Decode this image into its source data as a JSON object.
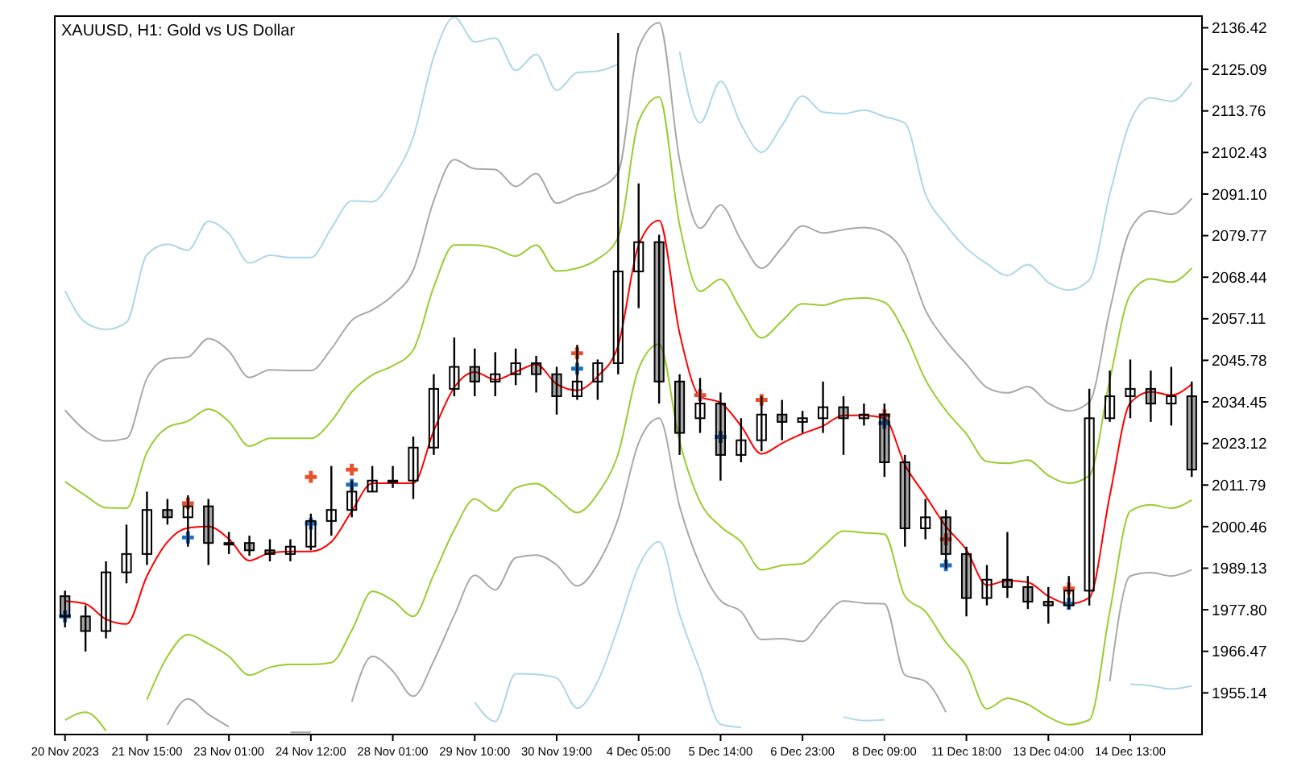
{
  "chart_data": {
    "type": "candlestick",
    "title": "XAUUSD, H1:  Gold vs US Dollar",
    "categories": [
      "20 Nov 2023",
      null,
      null,
      null,
      "21 Nov 15:00",
      null,
      null,
      null,
      "23 Nov 01:00",
      null,
      null,
      null,
      "24 Nov 12:00",
      null,
      null,
      null,
      "28 Nov 01:00",
      null,
      null,
      null,
      "29 Nov 10:00",
      null,
      null,
      null,
      "30 Nov 19:00",
      null,
      null,
      null,
      "4 Dec 05:00",
      null,
      null,
      null,
      "5 Dec 14:00",
      null,
      null,
      null,
      "6 Dec 23:00",
      null,
      null,
      null,
      "8 Dec 09:00",
      null,
      null,
      null,
      "11 Dec 18:00",
      null,
      null,
      null,
      "13 Dec 04:00",
      null,
      null,
      null,
      "14 Dec 13:00",
      null,
      null,
      null
    ],
    "ohlc": [
      [
        1981.5,
        1983,
        1973,
        1976
      ],
      [
        1976,
        1979,
        1966.4,
        1972
      ],
      [
        1972,
        1991,
        1970,
        1988
      ],
      [
        1988,
        2001,
        1985,
        1993
      ],
      [
        1993,
        2010,
        1990,
        2005
      ],
      [
        2005,
        2008,
        2001,
        2003
      ],
      [
        2003,
        2009,
        1995,
        2006
      ],
      [
        2006,
        2008,
        1990,
        1996
      ],
      [
        1996,
        1999,
        1993,
        1996
      ],
      [
        1996,
        1998,
        1992.5,
        1994
      ],
      [
        1994,
        1997,
        1991,
        1993
      ],
      [
        1993,
        1997,
        1991,
        1995
      ],
      [
        1995,
        2004,
        1994,
        2002
      ],
      [
        2002,
        2017,
        1998,
        2005
      ],
      [
        2005,
        2013,
        2003,
        2010
      ],
      [
        2010,
        2017,
        2010,
        2013
      ],
      [
        2013,
        2017,
        2011,
        2013
      ],
      [
        2013,
        2025,
        2008,
        2022
      ],
      [
        2022,
        2042,
        2020,
        2038
      ],
      [
        2038,
        2052,
        2036,
        2044
      ],
      [
        2044,
        2049,
        2036,
        2040
      ],
      [
        2040,
        2048,
        2036,
        2042
      ],
      [
        2042,
        2049,
        2039,
        2045
      ],
      [
        2045,
        2047,
        2037,
        2042
      ],
      [
        2042,
        2044,
        2031,
        2036
      ],
      [
        2036,
        2050,
        2035,
        2040
      ],
      [
        2040,
        2046,
        2035,
        2045
      ],
      [
        2045,
        2135,
        2042,
        2070
      ],
      [
        2070,
        2094,
        2060,
        2078
      ],
      [
        2078,
        2080,
        2034,
        2040
      ],
      [
        2040,
        2042,
        2020,
        2026
      ],
      [
        2030,
        2041,
        2026,
        2034
      ],
      [
        2034,
        2037,
        2013,
        2020
      ],
      [
        2020,
        2030,
        2018,
        2024
      ],
      [
        2024,
        2036,
        2021,
        2031
      ],
      [
        2031,
        2035,
        2024,
        2029
      ],
      [
        2029,
        2032,
        2026,
        2030
      ],
      [
        2030,
        2040,
        2026,
        2033
      ],
      [
        2033,
        2036,
        2020,
        2030
      ],
      [
        2030,
        2034,
        2028,
        2031
      ],
      [
        2031,
        2034,
        2014,
        2018
      ],
      [
        2018,
        2020,
        1995,
        2000
      ],
      [
        2000,
        2008,
        1997,
        2003
      ],
      [
        2003,
        2005,
        1989,
        1993
      ],
      [
        1993,
        1995,
        1976,
        1981
      ],
      [
        1981,
        1990,
        1979,
        1986
      ],
      [
        1986,
        1999,
        1981,
        1984
      ],
      [
        1984,
        1987,
        1978,
        1980
      ],
      [
        1980,
        1984,
        1974,
        1979
      ],
      [
        1979,
        1987,
        1978,
        1983
      ],
      [
        1983,
        2038,
        1979,
        2030
      ],
      [
        2030,
        2043,
        2029,
        2036
      ],
      [
        2036,
        2046,
        2030,
        2038
      ],
      [
        2038,
        2043,
        2029,
        2034
      ],
      [
        2034,
        2044,
        2028,
        2036
      ],
      [
        2036,
        2040,
        2014,
        2016
      ]
    ],
    "series": [
      {
        "type": "line",
        "color": "#add8e6",
        "values": [
          2064.7,
          2056.1,
          2054.2,
          2056.1,
          2074.6,
          2077.4,
          2075.8,
          2083.7,
          2080.3,
          2072.3,
          2074.4,
          2073.8,
          2073.8,
          2081.8,
          2089.2,
          2089.0,
          2095.5,
          2106.7,
          2128.5,
          2139.3,
          2132.6,
          2133.6,
          2124.8,
          2129.2,
          2119.4,
          2124.2,
          2124.6,
          2126.5,
          null,
          null,
          2129.9,
          2110.5,
          2121.8,
          2110.1,
          2102.5,
          2109.8,
          2117.8,
          2113.4,
          2113.0,
          2114.0,
          2112.2,
          2110.4,
          2091.1,
          2082.7,
          2076.3,
          2072.1,
          2068.9,
          2071.9,
          2067.0,
          2064.9,
          2067.7,
          2091.1,
          2110.9,
          2117.3,
          2116.4,
          2121.5
        ]
      },
      {
        "type": "line",
        "color": "#a9a9a9",
        "values": [
          2032.2,
          2026.6,
          2023.8,
          2024.5,
          2040.9,
          2046.2,
          2046.7,
          2051.7,
          2048.3,
          2041.1,
          2043.2,
          2043.0,
          2043.0,
          2048.9,
          2056.7,
          2059.5,
          2063.5,
          2070.4,
          2089.3,
          2100.5,
          2098.0,
          2097.8,
          2093.2,
          2096.7,
          2088.6,
          2090.9,
          2092.6,
          2097.0,
          2131.1,
          2137.8,
          2100.4,
          2081.8,
          2088.1,
          2078.5,
          2070.9,
          2076.5,
          2082.4,
          2080.5,
          2081.4,
          2082.0,
          2080.6,
          2074.6,
          2059.5,
          2051.1,
          2044.7,
          2038.4,
          2036.9,
          2038.6,
          2034.1,
          2032.0,
          2034.4,
          2059.5,
          2081.4,
          2086.5,
          2085.6,
          2089.9
        ]
      },
      {
        "type": "line",
        "color": "#9acd32",
        "values": [
          2012.7,
          2008.9,
          2005.6,
          2005.5,
          2020.7,
          2027.5,
          2029.2,
          2032.5,
          2029.1,
          2022.4,
          2024.5,
          2024.5,
          2024.5,
          2029.2,
          2037.2,
          2041.8,
          2044.3,
          2048.6,
          2065.8,
          2077.2,
          2077.2,
          2076.3,
          2074.2,
          2077.2,
          2070.1,
          2070.9,
          2073.4,
          2079.3,
          2110.9,
          2117.6,
          2082.7,
          2064.6,
          2067.9,
          2059.5,
          2051.9,
          2056.5,
          2061.2,
          2060.8,
          2062.4,
          2062.8,
          2061.6,
          2053.1,
          2040.5,
          2032.1,
          2025.7,
          2018.2,
          2017.7,
          2018.6,
          2014.4,
          2012.3,
          2014.4,
          2040.5,
          2063.7,
          2068.0,
          2067.1,
          2070.9
        ]
      },
      {
        "type": "line",
        "color": "#ff0000",
        "values": [
          1980.2,
          1979.4,
          1975.2,
          1973.9,
          1987.0,
          1996.3,
          2000.1,
          2000.5,
          1997.1,
          1991.2,
          1993.3,
          1993.7,
          1993.7,
          1996.3,
          2004.7,
          2012.3,
          2012.3,
          2012.3,
          2026.6,
          2038.4,
          2042.6,
          2040.5,
          2042.6,
          2044.7,
          2039.3,
          2037.6,
          2041.4,
          2049.8,
          2077.2,
          2083.9,
          2053.2,
          2035.9,
          2034.2,
          2027.9,
          2020.3,
          2023.2,
          2025.8,
          2027.9,
          2030.8,
          2030.8,
          2030.0,
          2017.3,
          2008.9,
          2000.5,
          1994.1,
          1984.5,
          1985.7,
          1985.3,
          1981.5,
          1979.4,
          1981.1,
          2008.9,
          2034.2,
          2037.2,
          2036.3,
          2039.3
        ]
      },
      {
        "type": "line",
        "color": "#9acd32",
        "values": [
          1947.7,
          1949.9,
          1944.8,
          null,
          1953.3,
          1965.1,
          1971.0,
          1968.5,
          1965.1,
          1960.0,
          1962.1,
          1962.9,
          1962.9,
          1963.4,
          1972.2,
          1982.8,
          1980.3,
          1976.0,
          1987.4,
          1999.6,
          2008.0,
          2004.7,
          2011.0,
          2012.2,
          2008.5,
          2004.3,
          2009.4,
          2020.3,
          2043.5,
          2050.2,
          2023.7,
          2007.2,
          2000.5,
          1996.3,
          1988.7,
          1989.9,
          1990.4,
          1995.0,
          1999.2,
          1998.8,
          1998.4,
          1981.5,
          1977.3,
          1968.9,
          1962.5,
          1950.8,
          1953.7,
          1952.0,
          1948.6,
          1946.5,
          1947.8,
          1977.3,
          2004.7,
          2006.4,
          2005.5,
          2007.7
        ]
      },
      {
        "type": "line",
        "color": "#a9a9a9",
        "values": [
          null,
          null,
          null,
          null,
          null,
          1946.4,
          1953.5,
          1949.3,
          1945.9,
          null,
          null,
          1944.4,
          1944.4,
          null,
          1952.7,
          1965.1,
          1961.1,
          1954.2,
          1963.9,
          1976.3,
          1987.2,
          1983.2,
          1992.0,
          1992.7,
          1990.0,
          1984.3,
          1990.2,
          2002.6,
          2023.3,
          2030.0,
          2006.0,
          1990.0,
          1980.3,
          1977.3,
          1969.7,
          1969.9,
          1969.2,
          1975.3,
          1980.2,
          1979.6,
          1979.4,
          1960.0,
          1958.3,
          1949.9,
          null,
          null,
          null,
          null,
          null,
          null,
          null,
          1958.3,
          1987.0,
          1987.9,
          1987.0,
          1988.7
        ]
      },
      {
        "type": "line",
        "color": "#add8e6",
        "values": [
          null,
          null,
          null,
          null,
          null,
          null,
          null,
          null,
          null,
          null,
          null,
          null,
          null,
          null,
          null,
          null,
          null,
          null,
          null,
          null,
          1952.6,
          1947.4,
          1960.4,
          1960.2,
          1959.2,
          1951.0,
          1958.2,
          1973.1,
          1989.6,
          1996.3,
          1976.5,
          1961.3,
          1946.6,
          1945.7,
          null,
          null,
          null,
          null,
          1948.6,
          1947.6,
          1947.8,
          null,
          null,
          null,
          null,
          null,
          null,
          null,
          null,
          null,
          null,
          null,
          1957.5,
          1957.1,
          1956.2,
          1957.1
        ]
      },
      {
        "type": "scatter",
        "marker": "cross",
        "color": "#e8502a",
        "values": [
          null,
          null,
          null,
          null,
          null,
          null,
          2006.8,
          null,
          null,
          null,
          null,
          null,
          2014,
          null,
          2016,
          null,
          null,
          null,
          null,
          null,
          null,
          null,
          null,
          null,
          null,
          2047.7,
          null,
          null,
          null,
          null,
          null,
          2036.3,
          null,
          null,
          2035,
          null,
          null,
          null,
          null,
          null,
          2030.8,
          null,
          null,
          1997,
          null,
          null,
          null,
          null,
          null,
          1983.6,
          null,
          null,
          null,
          null,
          null,
          null
        ]
      },
      {
        "type": "scatter",
        "marker": "cross",
        "color": "#1e6fc0",
        "values": [
          1976,
          null,
          null,
          null,
          null,
          null,
          1997.5,
          null,
          null,
          null,
          null,
          null,
          2001.3,
          null,
          2011.9,
          null,
          null,
          null,
          null,
          null,
          null,
          null,
          null,
          null,
          null,
          2043.5,
          null,
          null,
          null,
          null,
          null,
          null,
          2024.9,
          null,
          null,
          null,
          null,
          null,
          null,
          null,
          2028.7,
          null,
          null,
          1989.9,
          null,
          null,
          null,
          null,
          null,
          1979.4,
          null,
          null,
          null,
          null,
          null,
          null
        ]
      }
    ],
    "ylim": [
      1943.8,
      2139.6
    ],
    "yticks": [
      1955.14,
      1966.47,
      {
        "value": 1977.8,
        "label": "1977.80"
      },
      1989.13,
      2000.46,
      2011.79,
      2023.12,
      2034.45,
      2045.78,
      2057.11,
      2068.44,
      2079.77,
      {
        "value": 2091.1,
        "label": "2091.10"
      },
      2102.43,
      2113.76,
      2125.09,
      2136.42
    ]
  }
}
